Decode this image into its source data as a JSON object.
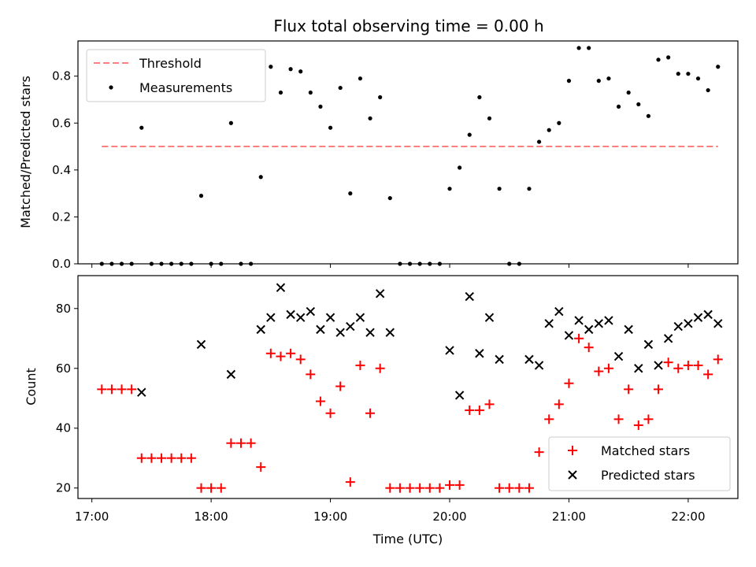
{
  "chart_data": [
    {
      "type": "scatter",
      "title": "Flux total observing time = 0.00 h",
      "xlabel": "",
      "ylabel": "Matched/Predicted stars",
      "ylim": [
        0,
        0.95
      ],
      "yticks": [
        0.0,
        0.2,
        0.4,
        0.6,
        0.8
      ],
      "ytick_labels": [
        "0.0",
        "0.2",
        "0.4",
        "0.6",
        "0.8"
      ],
      "legend_position": "top-left",
      "threshold": {
        "name": "Threshold",
        "y": 0.5,
        "x_start": "17:05",
        "x_end": "22:15",
        "color": "#ff7f7f"
      },
      "series": [
        {
          "name": "Measurements",
          "marker": "dot",
          "color": "#000000",
          "points": [
            [
              "17:05",
              0.0
            ],
            [
              "17:10",
              0.0
            ],
            [
              "17:15",
              0.0
            ],
            [
              "17:20",
              0.0
            ],
            [
              "17:25",
              0.58
            ],
            [
              "17:30",
              0.0
            ],
            [
              "17:35",
              0.0
            ],
            [
              "17:40",
              0.0
            ],
            [
              "17:45",
              0.0
            ],
            [
              "17:50",
              0.0
            ],
            [
              "17:55",
              0.29
            ],
            [
              "18:00",
              0.0
            ],
            [
              "18:05",
              0.0
            ],
            [
              "18:10",
              0.6
            ],
            [
              "18:15",
              0.0
            ],
            [
              "18:20",
              0.0
            ],
            [
              "18:25",
              0.37
            ],
            [
              "18:30",
              0.84
            ],
            [
              "18:35",
              0.73
            ],
            [
              "18:40",
              0.83
            ],
            [
              "18:45",
              0.82
            ],
            [
              "18:50",
              0.73
            ],
            [
              "18:55",
              0.67
            ],
            [
              "19:00",
              0.58
            ],
            [
              "19:05",
              0.75
            ],
            [
              "19:10",
              0.3
            ],
            [
              "19:15",
              0.79
            ],
            [
              "19:20",
              0.62
            ],
            [
              "19:25",
              0.71
            ],
            [
              "19:30",
              0.28
            ],
            [
              "19:35",
              0.0
            ],
            [
              "19:40",
              0.0
            ],
            [
              "19:45",
              0.0
            ],
            [
              "19:50",
              0.0
            ],
            [
              "19:55",
              0.0
            ],
            [
              "20:00",
              0.32
            ],
            [
              "20:05",
              0.41
            ],
            [
              "20:10",
              0.55
            ],
            [
              "20:15",
              0.71
            ],
            [
              "20:20",
              0.62
            ],
            [
              "20:25",
              0.32
            ],
            [
              "20:30",
              0.0
            ],
            [
              "20:35",
              0.0
            ],
            [
              "20:40",
              0.32
            ],
            [
              "20:45",
              0.52
            ],
            [
              "20:50",
              0.57
            ],
            [
              "20:55",
              0.6
            ],
            [
              "21:00",
              0.78
            ],
            [
              "21:05",
              0.92
            ],
            [
              "21:10",
              0.92
            ],
            [
              "21:15",
              0.78
            ],
            [
              "21:20",
              0.79
            ],
            [
              "21:25",
              0.67
            ],
            [
              "21:30",
              0.73
            ],
            [
              "21:35",
              0.68
            ],
            [
              "21:40",
              0.63
            ],
            [
              "21:45",
              0.87
            ],
            [
              "21:50",
              0.88
            ],
            [
              "21:55",
              0.81
            ],
            [
              "22:00",
              0.81
            ],
            [
              "22:05",
              0.79
            ],
            [
              "22:10",
              0.74
            ],
            [
              "22:15",
              0.84
            ]
          ]
        }
      ]
    },
    {
      "type": "scatter",
      "title": "",
      "xlabel": "Time (UTC)",
      "ylabel": "Count",
      "ylim": [
        16.5,
        91
      ],
      "yticks": [
        20,
        40,
        60,
        80
      ],
      "ytick_labels": [
        "20",
        "40",
        "60",
        "80"
      ],
      "xlim": [
        "16:53",
        "22:25"
      ],
      "xticks": [
        "17:00",
        "18:00",
        "19:00",
        "20:00",
        "21:00",
        "22:00"
      ],
      "legend_position": "bottom-right",
      "series": [
        {
          "name": "Matched stars",
          "marker": "plus",
          "color": "#ff0000",
          "points": [
            [
              "17:05",
              53
            ],
            [
              "17:10",
              53
            ],
            [
              "17:15",
              53
            ],
            [
              "17:20",
              53
            ],
            [
              "17:25",
              30
            ],
            [
              "17:30",
              30
            ],
            [
              "17:35",
              30
            ],
            [
              "17:40",
              30
            ],
            [
              "17:45",
              30
            ],
            [
              "17:50",
              30
            ],
            [
              "17:55",
              20
            ],
            [
              "18:00",
              20
            ],
            [
              "18:05",
              20
            ],
            [
              "18:10",
              35
            ],
            [
              "18:15",
              35
            ],
            [
              "18:20",
              35
            ],
            [
              "18:25",
              27
            ],
            [
              "18:30",
              65
            ],
            [
              "18:35",
              64
            ],
            [
              "18:40",
              65
            ],
            [
              "18:45",
              63
            ],
            [
              "18:50",
              58
            ],
            [
              "18:55",
              49
            ],
            [
              "19:00",
              45
            ],
            [
              "19:05",
              54
            ],
            [
              "19:10",
              22
            ],
            [
              "19:15",
              61
            ],
            [
              "19:20",
              45
            ],
            [
              "19:25",
              60
            ],
            [
              "19:30",
              20
            ],
            [
              "19:35",
              20
            ],
            [
              "19:40",
              20
            ],
            [
              "19:45",
              20
            ],
            [
              "19:50",
              20
            ],
            [
              "19:55",
              20
            ],
            [
              "20:00",
              21
            ],
            [
              "20:05",
              21
            ],
            [
              "20:10",
              46
            ],
            [
              "20:15",
              46
            ],
            [
              "20:20",
              48
            ],
            [
              "20:25",
              20
            ],
            [
              "20:30",
              20
            ],
            [
              "20:35",
              20
            ],
            [
              "20:40",
              20
            ],
            [
              "20:45",
              32
            ],
            [
              "20:50",
              43
            ],
            [
              "20:55",
              48
            ],
            [
              "21:00",
              55
            ],
            [
              "21:05",
              70
            ],
            [
              "21:10",
              67
            ],
            [
              "21:15",
              59
            ],
            [
              "21:20",
              60
            ],
            [
              "21:25",
              43
            ],
            [
              "21:30",
              53
            ],
            [
              "21:35",
              41
            ],
            [
              "21:40",
              43
            ],
            [
              "21:45",
              53
            ],
            [
              "21:50",
              62
            ],
            [
              "21:55",
              60
            ],
            [
              "22:00",
              61
            ],
            [
              "22:05",
              61
            ],
            [
              "22:10",
              58
            ],
            [
              "22:15",
              63
            ]
          ]
        },
        {
          "name": "Predicted stars",
          "marker": "x",
          "color": "#000000",
          "points": [
            [
              "17:25",
              52
            ],
            [
              "17:55",
              68
            ],
            [
              "18:10",
              58
            ],
            [
              "18:25",
              73
            ],
            [
              "18:30",
              77
            ],
            [
              "18:35",
              87
            ],
            [
              "18:40",
              78
            ],
            [
              "18:45",
              77
            ],
            [
              "18:50",
              79
            ],
            [
              "18:55",
              73
            ],
            [
              "19:00",
              77
            ],
            [
              "19:05",
              72
            ],
            [
              "19:10",
              74
            ],
            [
              "19:15",
              77
            ],
            [
              "19:20",
              72
            ],
            [
              "19:25",
              85
            ],
            [
              "19:30",
              72
            ],
            [
              "20:00",
              66
            ],
            [
              "20:05",
              51
            ],
            [
              "20:10",
              84
            ],
            [
              "20:15",
              65
            ],
            [
              "20:20",
              77
            ],
            [
              "20:25",
              63
            ],
            [
              "20:40",
              63
            ],
            [
              "20:45",
              61
            ],
            [
              "20:50",
              75
            ],
            [
              "20:55",
              79
            ],
            [
              "21:00",
              71
            ],
            [
              "21:05",
              76
            ],
            [
              "21:10",
              73
            ],
            [
              "21:15",
              75
            ],
            [
              "21:20",
              76
            ],
            [
              "21:25",
              64
            ],
            [
              "21:30",
              73
            ],
            [
              "21:35",
              60
            ],
            [
              "21:40",
              68
            ],
            [
              "21:45",
              61
            ],
            [
              "21:50",
              70
            ],
            [
              "21:55",
              74
            ],
            [
              "22:00",
              75
            ],
            [
              "22:05",
              77
            ],
            [
              "22:10",
              78
            ],
            [
              "22:15",
              75
            ]
          ]
        }
      ]
    }
  ]
}
